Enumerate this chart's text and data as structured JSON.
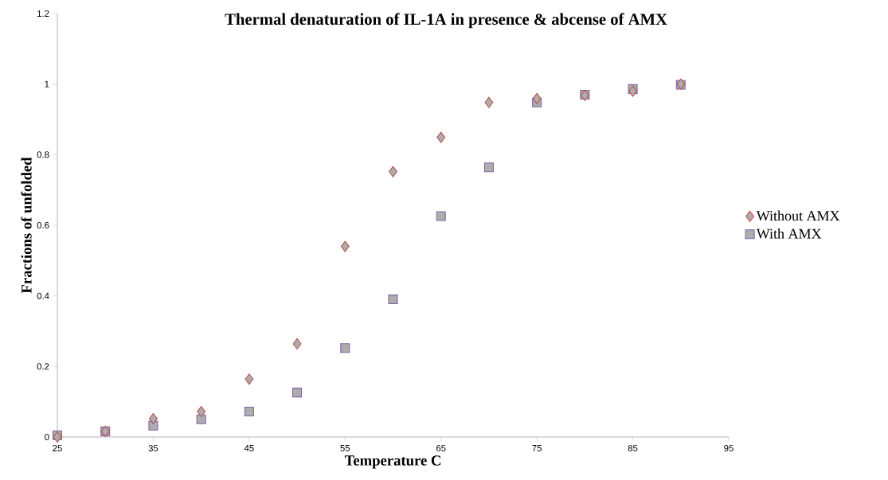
{
  "chart_data": {
    "type": "scatter",
    "title": "Thermal denaturation of IL-1A in presence & abcense of AMX",
    "xlabel": "Temperature C",
    "ylabel": "Fractions of unfolded",
    "x": [
      25,
      30,
      35,
      40,
      45,
      50,
      55,
      60,
      65,
      70,
      75,
      80,
      85,
      90
    ],
    "series": [
      {
        "name": "Without AMX",
        "color": "#c0504d",
        "marker": "diamond",
        "values": [
          0,
          0.016,
          0.052,
          0.072,
          0.164,
          0.264,
          0.54,
          0.752,
          0.849,
          0.948,
          0.959,
          0.968,
          0.98,
          1.0
        ]
      },
      {
        "name": "With AMX",
        "color": "#8064a2",
        "marker": "square",
        "values": [
          0.005,
          0.016,
          0.032,
          0.05,
          0.072,
          0.126,
          0.252,
          0.39,
          0.626,
          0.764,
          0.948,
          0.97,
          0.986,
          0.998
        ]
      }
    ],
    "xlim": [
      25,
      95
    ],
    "xticks": [
      25,
      35,
      45,
      55,
      65,
      75,
      85,
      95
    ],
    "ylim": [
      0,
      1.2
    ],
    "yticks": [
      0,
      0.2,
      0.4,
      0.6,
      0.8,
      1,
      1.2
    ],
    "grid": false,
    "legend": "right"
  }
}
